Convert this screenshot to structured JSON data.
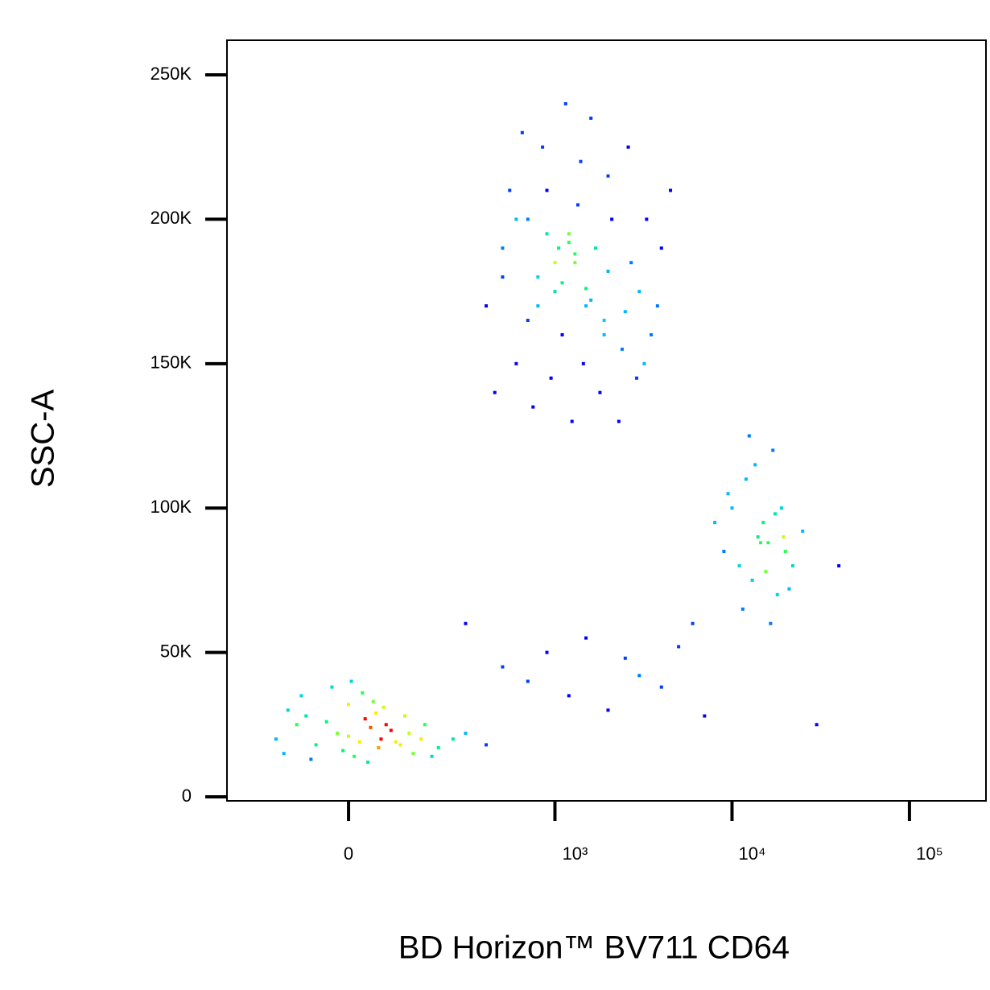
{
  "chart_data": {
    "type": "scatter",
    "x_label": "BD Horizon™ BV711 CD64",
    "y_label": "SSC-A",
    "xscale": "biexponential",
    "xlim": [
      -320,
      270000
    ],
    "ylim": [
      -1400,
      262000
    ],
    "xticks": [
      {
        "value": 0,
        "label": "0"
      },
      {
        "value": 1000,
        "label": "10³"
      },
      {
        "value": 10000,
        "label": "10⁴"
      },
      {
        "value": 100000,
        "label": "10⁵"
      }
    ],
    "yticks": [
      {
        "value": 0,
        "label": "0"
      },
      {
        "value": 50000,
        "label": "50K"
      },
      {
        "value": 100000,
        "label": "100K"
      },
      {
        "value": 150000,
        "label": "150K"
      },
      {
        "value": 200000,
        "label": "200K"
      },
      {
        "value": 250000,
        "label": "250K"
      }
    ],
    "x": [
      -150,
      -100,
      -60,
      -20,
      0,
      20,
      40,
      60,
      80,
      100,
      -120,
      -80,
      -40,
      0,
      30,
      50,
      70,
      120,
      150,
      200,
      -130,
      -70,
      -10,
      10,
      35,
      55,
      90,
      130,
      180,
      250,
      -90,
      -30,
      5,
      25,
      45,
      65,
      110,
      160,
      300,
      400,
      400,
      500,
      600,
      700,
      800,
      900,
      1000,
      1100,
      1200,
      1300,
      1400,
      1500,
      1700,
      1900,
      2100,
      2400,
      2700,
      3000,
      3500,
      4000,
      450,
      550,
      650,
      750,
      850,
      950,
      1050,
      1150,
      1250,
      1350,
      1450,
      1600,
      1800,
      2000,
      2300,
      2600,
      2900,
      3300,
      3800,
      4500,
      500,
      700,
      900,
      1100,
      1300,
      1600,
      2000,
      2500,
      3200,
      600,
      800,
      1000,
      1200,
      1500,
      1900,
      8000,
      9000,
      10000,
      11000,
      12000,
      13000,
      14000,
      15000,
      16000,
      17000,
      18000,
      19000,
      20000,
      22000,
      25000,
      9500,
      11500,
      13500,
      15500,
      17500,
      19500,
      21000,
      12500,
      16500,
      14500,
      300,
      500,
      700,
      900,
      1200,
      1500,
      2000,
      2500,
      3000,
      4000,
      5000,
      6000,
      7000,
      30000,
      40000
    ],
    "y": [
      20000,
      25000,
      18000,
      22000,
      21000,
      19000,
      24000,
      20000,
      23000,
      18000,
      30000,
      28000,
      26000,
      32000,
      27000,
      29000,
      25000,
      22000,
      20000,
      17000,
      15000,
      13000,
      16000,
      14000,
      12000,
      17000,
      19000,
      15000,
      14000,
      20000,
      35000,
      38000,
      40000,
      36000,
      33000,
      31000,
      28000,
      25000,
      22000,
      18000,
      170000,
      190000,
      150000,
      200000,
      180000,
      210000,
      175000,
      160000,
      195000,
      185000,
      220000,
      170000,
      190000,
      165000,
      200000,
      155000,
      185000,
      175000,
      160000,
      190000,
      140000,
      210000,
      230000,
      135000,
      225000,
      145000,
      190000,
      240000,
      130000,
      205000,
      150000,
      235000,
      140000,
      215000,
      130000,
      225000,
      145000,
      200000,
      170000,
      210000,
      180000,
      165000,
      195000,
      178000,
      188000,
      172000,
      182000,
      168000,
      150000,
      200000,
      170000,
      185000,
      192000,
      176000,
      160000,
      95000,
      85000,
      100000,
      80000,
      110000,
      75000,
      90000,
      95000,
      88000,
      120000,
      70000,
      100000,
      85000,
      80000,
      92000,
      105000,
      65000,
      115000,
      78000,
      98000,
      90000,
      72000,
      125000,
      60000,
      88000,
      60000,
      45000,
      40000,
      50000,
      35000,
      55000,
      30000,
      48000,
      42000,
      38000,
      52000,
      60000,
      28000,
      25000,
      80000
    ],
    "colormap": [
      "#0000ff",
      "#00c8ff",
      "#00ff64",
      "#ffff00",
      "#ff0000"
    ]
  }
}
